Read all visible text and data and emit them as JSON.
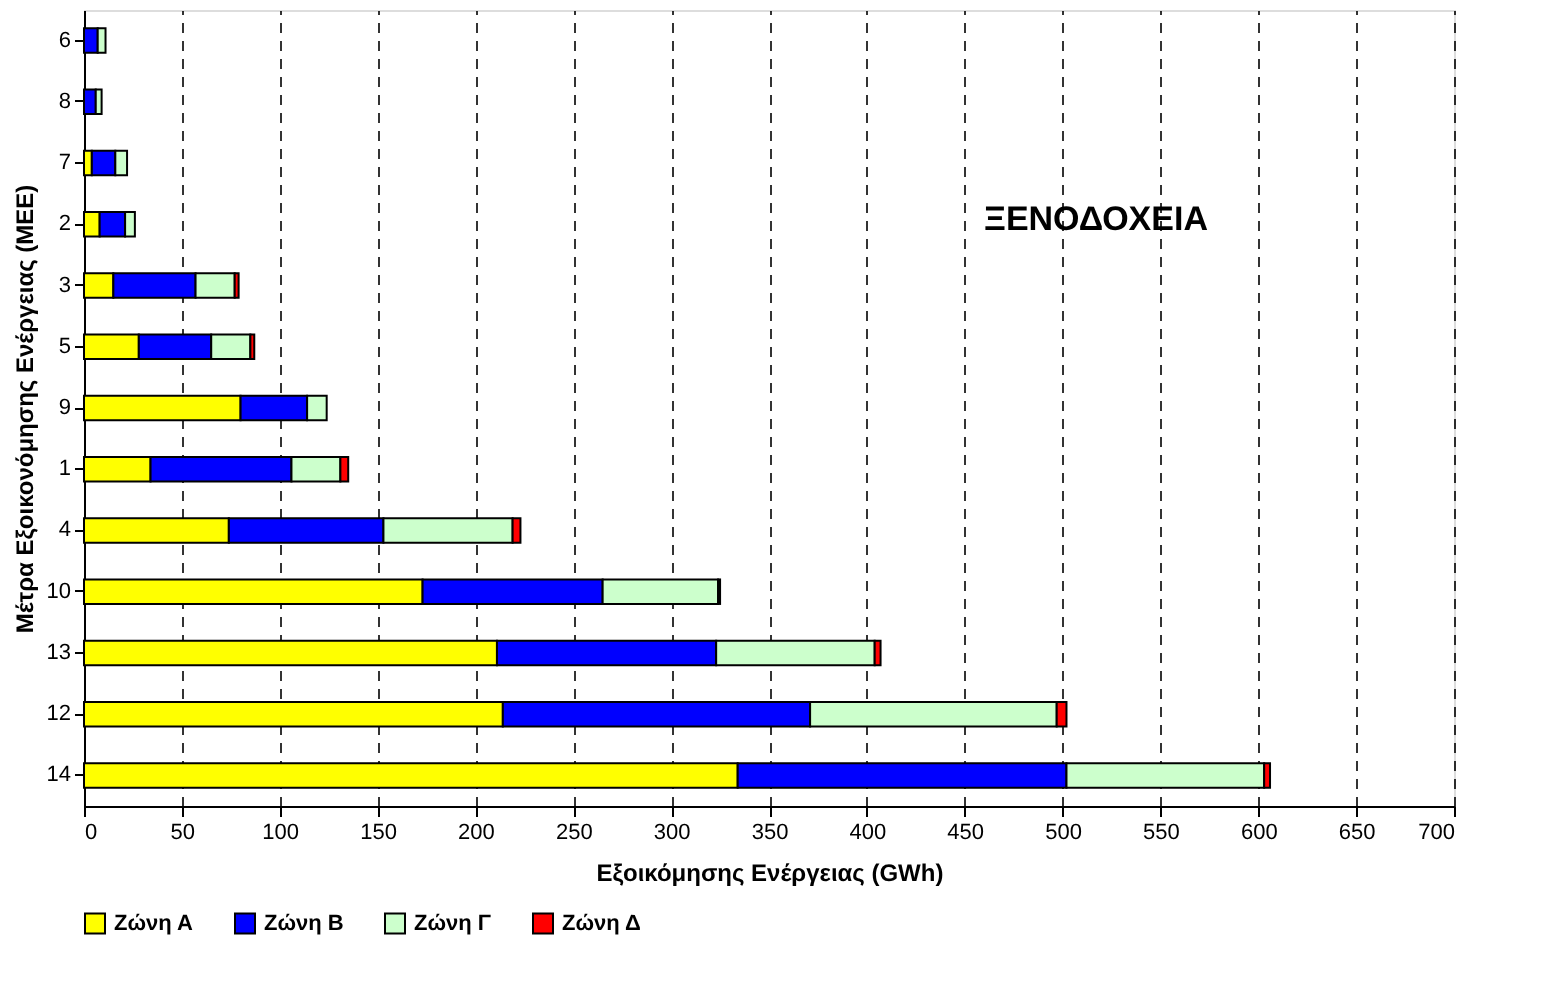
{
  "chart_data": {
    "type": "bar",
    "orientation": "horizontal",
    "stacked": true,
    "categories": [
      "6",
      "8",
      "7",
      "2",
      "3",
      "5",
      "9",
      "1",
      "4",
      "10",
      "13",
      "12",
      "14"
    ],
    "series": [
      {
        "name": "Ζώνη Α",
        "color": "#ffff00",
        "values": [
          null,
          null,
          4,
          8,
          15,
          28,
          80,
          34,
          74,
          173,
          211,
          214,
          334
        ]
      },
      {
        "name": "Ζώνη Β",
        "color": "#0000ff",
        "values": [
          7,
          6,
          12,
          13,
          42,
          37,
          34,
          72,
          79,
          92,
          112,
          157,
          168
        ]
      },
      {
        "name": "Ζώνη Γ",
        "color": "#ccffcc",
        "values": [
          4,
          3,
          6,
          5,
          20,
          20,
          10,
          25,
          66,
          59,
          81,
          126,
          101
        ]
      },
      {
        "name": "Ζώνη Δ",
        "color": "#ff0000",
        "values": [
          null,
          null,
          null,
          null,
          2,
          2,
          null,
          4,
          4,
          1,
          3,
          5,
          3
        ]
      }
    ],
    "xlabel": "Εξοικόμησης Ενέργειας (GWh)",
    "ylabel": "Μέτρα Εξοικονόμησης Ενέργειας (ΜΕΕ)",
    "annotations": [
      "ΞΕΝΟΔΟΧΕΙΑ"
    ],
    "xlim": [
      0,
      700
    ],
    "xticks": [
      0,
      50,
      100,
      150,
      200,
      250,
      300,
      350,
      400,
      450,
      500,
      550,
      600,
      650,
      700
    ],
    "grid": "x",
    "legend": "bottom left"
  }
}
